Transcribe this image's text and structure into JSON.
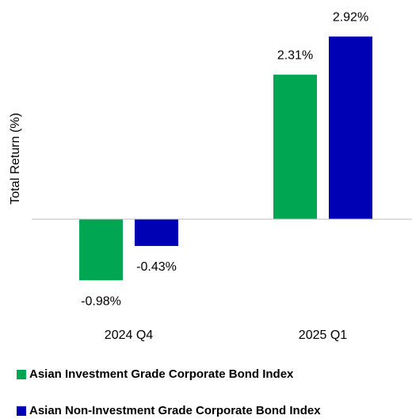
{
  "chart_data": {
    "type": "bar",
    "y_axis_label": "Total Return (%)",
    "categories": [
      "2024 Q4",
      "2025 Q1"
    ],
    "series": [
      {
        "name": "Asian Investment Grade Corporate Bond Index",
        "color": "#00a651",
        "values": [
          -0.98,
          2.31
        ],
        "value_labels": [
          "-0.98%",
          "2.31%"
        ]
      },
      {
        "name": "Asian Non-Investment Grade Corporate Bond Index",
        "color": "#0000b4",
        "values": [
          -0.43,
          2.92
        ],
        "value_labels": [
          "-0.43%",
          "2.92%"
        ]
      }
    ],
    "ylim": [
      -1.2,
      3.2
    ]
  }
}
